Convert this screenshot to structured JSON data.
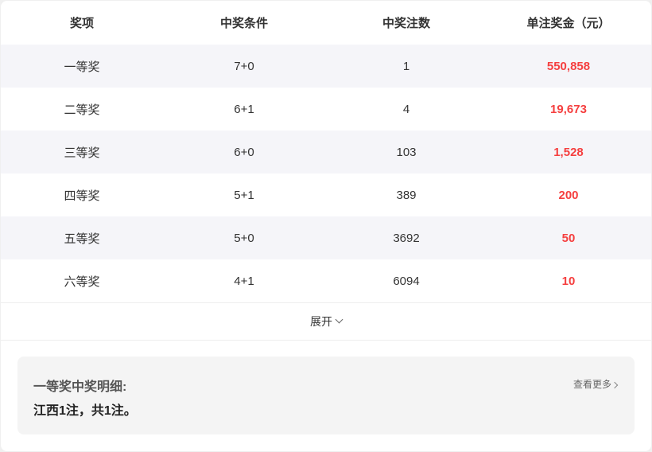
{
  "table": {
    "headers": [
      "奖项",
      "中奖条件",
      "中奖注数",
      "单注奖金（元）"
    ],
    "rows": [
      {
        "level": "一等奖",
        "condition": "7+0",
        "count": "1",
        "prize": "550,858"
      },
      {
        "level": "二等奖",
        "condition": "6+1",
        "count": "4",
        "prize": "19,673"
      },
      {
        "level": "三等奖",
        "condition": "6+0",
        "count": "103",
        "prize": "1,528"
      },
      {
        "level": "四等奖",
        "condition": "5+1",
        "count": "389",
        "prize": "200"
      },
      {
        "level": "五等奖",
        "condition": "5+0",
        "count": "3692",
        "prize": "50"
      },
      {
        "level": "六等奖",
        "condition": "4+1",
        "count": "6094",
        "prize": "10"
      }
    ]
  },
  "expand_label": "展开",
  "detail": {
    "title": "一等奖中奖明细:",
    "text": "江西1注，共1注。",
    "more_label": "查看更多"
  },
  "colors": {
    "prize": "#f53f3f",
    "alt_row": "#f5f5f9"
  }
}
